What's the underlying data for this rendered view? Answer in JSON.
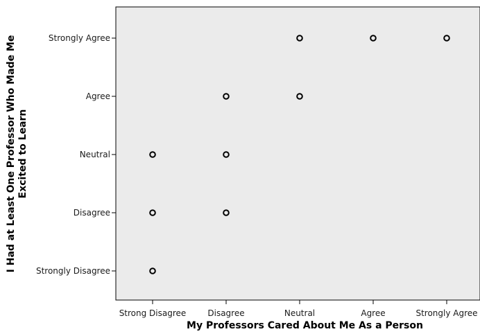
{
  "chart_data": {
    "type": "scatter",
    "title": "",
    "xlabel": "My Professors Cared About Me As a Person",
    "ylabel_line1": "I Had at Least One Professor Who Made Me",
    "ylabel_line2": "Excited to Learn",
    "x_categories": [
      "Strong Disagree",
      "Disagree",
      "Neutral",
      "Agree",
      "Strongly Agree"
    ],
    "y_categories": [
      "Strongly Disagree",
      "Disagree",
      "Neutral",
      "Agree",
      "Strongly Agree"
    ],
    "points": [
      {
        "x": "Neutral",
        "y": "Strongly Agree"
      },
      {
        "x": "Agree",
        "y": "Strongly Agree"
      },
      {
        "x": "Strongly Agree",
        "y": "Strongly Agree"
      },
      {
        "x": "Disagree",
        "y": "Agree"
      },
      {
        "x": "Neutral",
        "y": "Agree"
      },
      {
        "x": "Strong Disagree",
        "y": "Neutral"
      },
      {
        "x": "Disagree",
        "y": "Neutral"
      },
      {
        "x": "Strong Disagree",
        "y": "Disagree"
      },
      {
        "x": "Disagree",
        "y": "Disagree"
      },
      {
        "x": "Strong Disagree",
        "y": "Strongly Disagree"
      }
    ],
    "grid": false,
    "marker": "hollow-circle",
    "colors": {
      "plot_background": "#ebebeb",
      "marker": "#000000",
      "axis": "#000000"
    }
  }
}
